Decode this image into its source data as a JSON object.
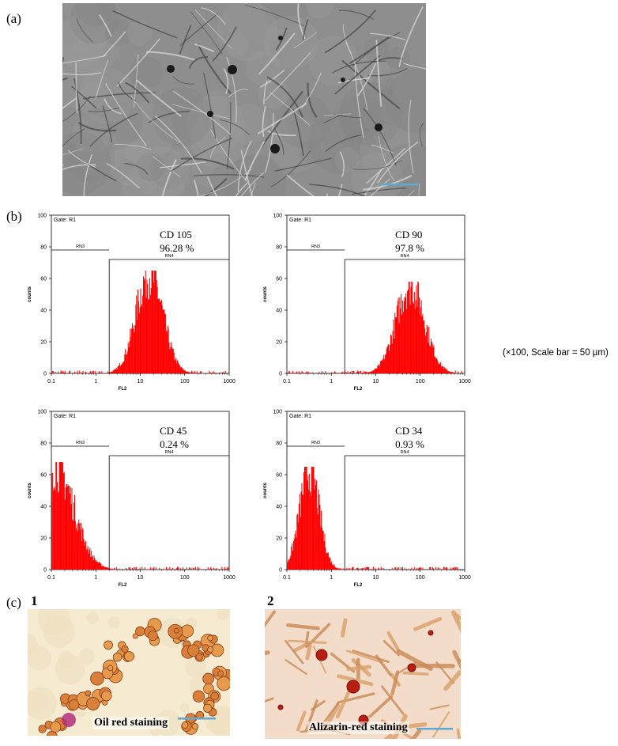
{
  "panels": {
    "a": "(a)",
    "b": "(b)",
    "c": "(c)"
  },
  "side_caption": "(×100, Scale bar = 50 µm)",
  "micrographs": {
    "c1_number": "1",
    "c2_number": "2",
    "c1_label": "Oil red staining",
    "c2_label": "Alizarin-red staining"
  },
  "colors": {
    "histogram_fill": "#ff0000",
    "scale_bar": "#5fa8d3",
    "phase_contrast_bg": "#8e8e8e",
    "oil_red_bg": "#f6ead0",
    "alizarin_bg": "#f4dccb"
  },
  "chart_data": [
    {
      "type": "histogram",
      "marker": "CD 105",
      "percent": "96.28 %",
      "gate": "Gate: R1",
      "regions": [
        "RN3",
        "RN4"
      ],
      "xlabel": "FL2",
      "ylabel": "counts",
      "xscale": "log",
      "xlim": [
        0.1,
        1000
      ],
      "ylim": [
        0,
        100
      ],
      "xticks": [
        "0.1",
        "1",
        "10",
        "100",
        "1000"
      ],
      "yticks": [
        "0",
        "20",
        "40",
        "60",
        "80",
        "100"
      ],
      "gate_divider_x": 2,
      "rn3_level": 78,
      "rn4_level": 72,
      "peak": {
        "x": 16,
        "count": 65,
        "sigma_decades": 0.3
      }
    },
    {
      "type": "histogram",
      "marker": "CD 90",
      "percent": "97.8 %",
      "gate": "Gate: R1",
      "regions": [
        "RN3",
        "RN4"
      ],
      "xlabel": "FL2",
      "ylabel": "counts",
      "xscale": "log",
      "xlim": [
        0.1,
        1000
      ],
      "ylim": [
        0,
        100
      ],
      "xticks": [
        "0.1",
        "1",
        "10",
        "100",
        "1000"
      ],
      "yticks": [
        "0",
        "20",
        "40",
        "60",
        "80",
        "100"
      ],
      "gate_divider_x": 2,
      "rn3_level": 78,
      "rn4_level": 72,
      "peak": {
        "x": 60,
        "count": 58,
        "sigma_decades": 0.32
      }
    },
    {
      "type": "histogram",
      "marker": "CD 45",
      "percent": "0.24 %",
      "gate": "Gate: R1",
      "regions": [
        "RN3",
        "RN4"
      ],
      "xlabel": "FL2",
      "ylabel": "counts",
      "xscale": "log",
      "xlim": [
        0.1,
        1000
      ],
      "ylim": [
        0,
        100
      ],
      "xticks": [
        "0.1",
        "1",
        "10",
        "100",
        "1000"
      ],
      "yticks": [
        "0",
        "20",
        "40",
        "60",
        "80",
        "100"
      ],
      "gate_divider_x": 2,
      "rn3_level": 78,
      "rn4_level": 72,
      "peak": {
        "x": 0.12,
        "count": 68,
        "sigma_decades": 0.42
      }
    },
    {
      "type": "histogram",
      "marker": "CD 34",
      "percent": "0.93 %",
      "gate": "Gate: R1",
      "regions": [
        "RN3",
        "RN4"
      ],
      "xlabel": "FL2",
      "ylabel": "counts",
      "xscale": "log",
      "xlim": [
        0.1,
        1000
      ],
      "ylim": [
        0,
        100
      ],
      "xticks": [
        "0.1",
        "1",
        "10",
        "100",
        "1000"
      ],
      "yticks": [
        "0",
        "20",
        "40",
        "60",
        "80",
        "100"
      ],
      "gate_divider_x": 2,
      "rn3_level": 78,
      "rn4_level": 72,
      "peak": {
        "x": 0.32,
        "count": 65,
        "sigma_decades": 0.22
      }
    }
  ]
}
